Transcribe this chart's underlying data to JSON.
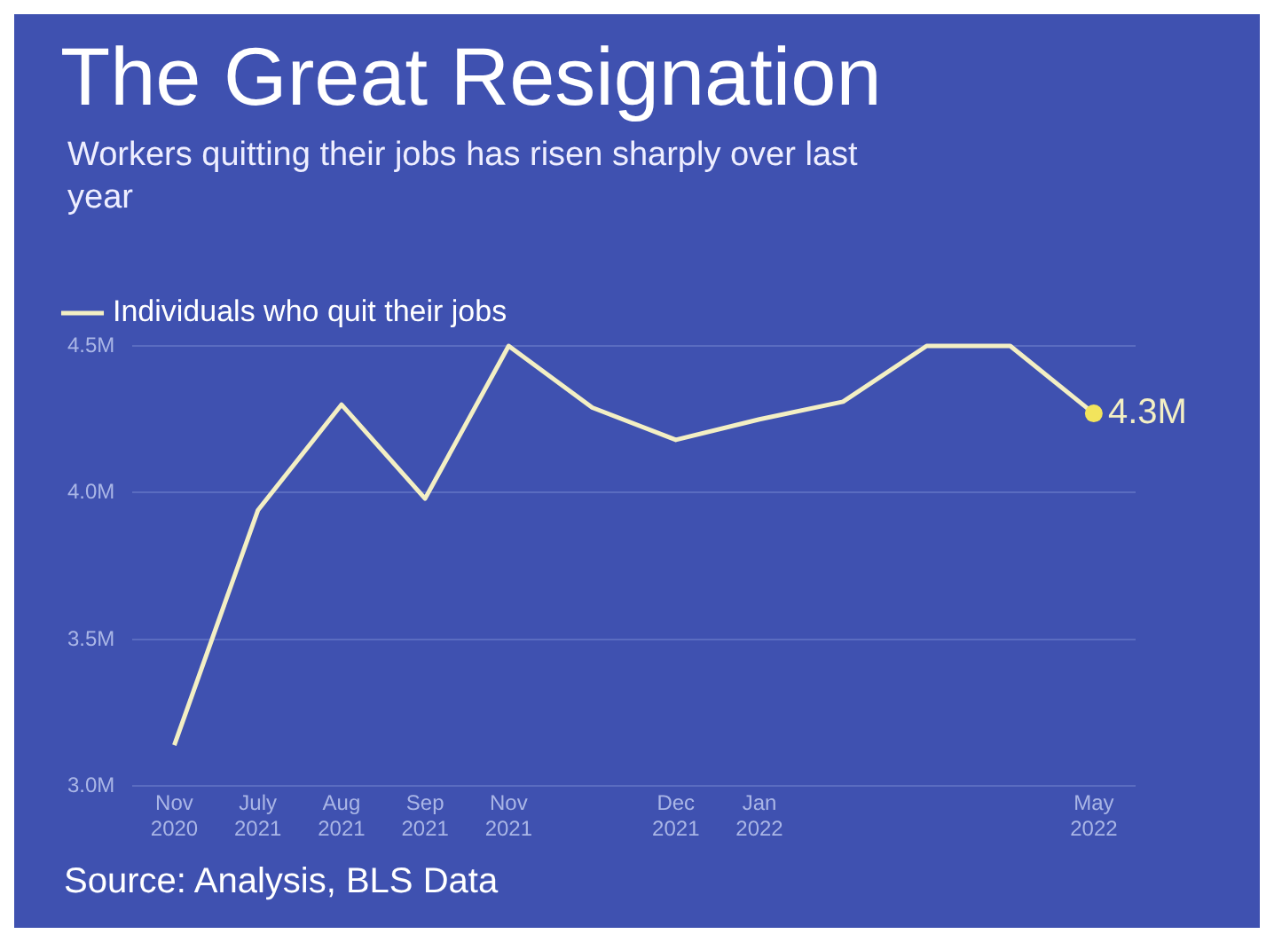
{
  "chart_data": {
    "type": "line",
    "title": "The Great Resignation",
    "subtitle": "Workers quitting their jobs has risen sharply over last year",
    "categories": [
      "Nov 2020",
      "July 2021",
      "Aug 2021",
      "Sep 2021",
      "Nov 2021",
      null,
      "Dec 2021",
      "Jan 2022",
      null,
      null,
      null,
      "May 2022"
    ],
    "series": [
      {
        "name": "Individuals who quit their jobs",
        "color": "#f3efc4",
        "values": [
          3.14,
          3.94,
          4.3,
          3.98,
          4.5,
          4.29,
          4.18,
          4.25,
          4.31,
          4.5,
          4.5,
          4.27
        ]
      }
    ],
    "ylim": [
      3.0,
      4.5
    ],
    "yticks": [
      {
        "value": 3.0,
        "label": "3.0M"
      },
      {
        "value": 3.5,
        "label": "3.5M"
      },
      {
        "value": 4.0,
        "label": "4.0M"
      },
      {
        "value": 4.5,
        "label": "4.5M"
      }
    ],
    "grid": "y",
    "legend": "top left",
    "marker": "none",
    "line_style": "solid",
    "annotations": [
      {
        "text": "4.3M",
        "x": "May 2022",
        "y": 4.27
      },
      "Source: Analysis, BLS Data"
    ]
  }
}
